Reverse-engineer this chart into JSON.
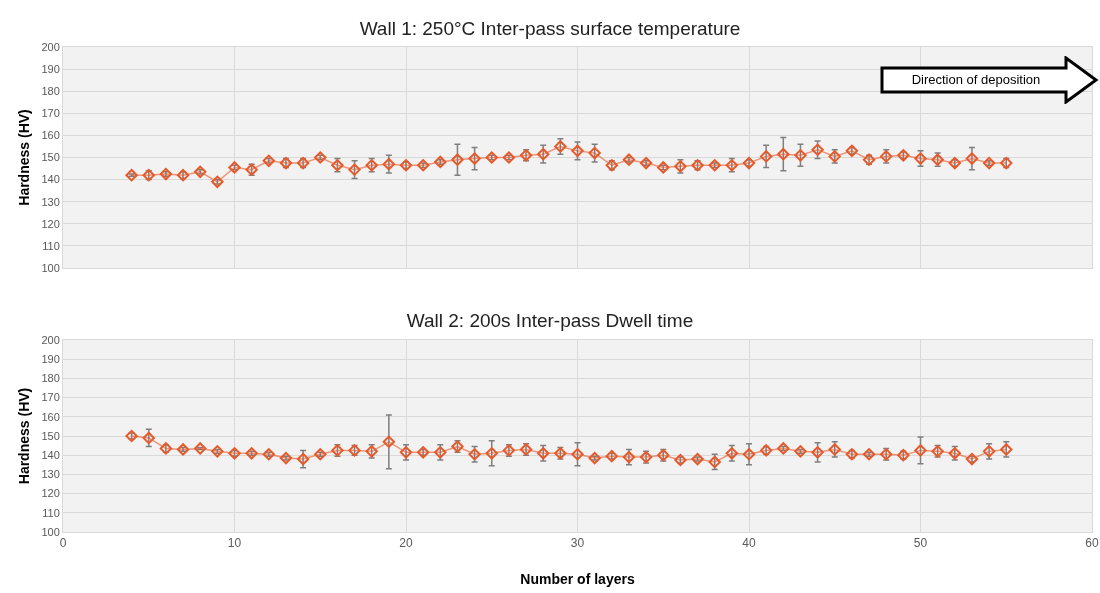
{
  "chart_data": [
    {
      "type": "line",
      "title": "Wall 1: 250°C Inter-pass surface temperature",
      "ylabel": "Hardness (HV)",
      "x": [
        4,
        5,
        6,
        7,
        8,
        9,
        10,
        11,
        12,
        13,
        14,
        15,
        16,
        17,
        18,
        19,
        20,
        21,
        22,
        23,
        24,
        25,
        26,
        27,
        28,
        29,
        30,
        31,
        32,
        33,
        34,
        35,
        36,
        37,
        38,
        39,
        40,
        41,
        42,
        43,
        44,
        45,
        46,
        47,
        48,
        49,
        50,
        51,
        52,
        53,
        54,
        55
      ],
      "series": [
        {
          "color": "#e8592a",
          "values": [
            142,
            142,
            142.5,
            142,
            143.5,
            139,
            145.5,
            144.5,
            148.5,
            147.5,
            147.5,
            150,
            146.5,
            144.5,
            146.5,
            147,
            146.5,
            146.5,
            148,
            149,
            149.5,
            150,
            150,
            151,
            151.5,
            155,
            153,
            152,
            146.5,
            149,
            147.5,
            145.5,
            146,
            146.5,
            146.5,
            146.5,
            147.5,
            150.5,
            151.5,
            151,
            153.5,
            150.5,
            153,
            149,
            150.5,
            151,
            149.5,
            149,
            147.5,
            149.5,
            147.5,
            147.5
          ],
          "errors": [
            0.5,
            2,
            1,
            1.5,
            1,
            1,
            1,
            2.5,
            1,
            2,
            2,
            1,
            3,
            4,
            3,
            4,
            1.5,
            1,
            1,
            7,
            5,
            1,
            1,
            2.5,
            4,
            3.5,
            4,
            4,
            2,
            1,
            1,
            1,
            3,
            2,
            1,
            3,
            1.5,
            5,
            7.5,
            5,
            4,
            3,
            1.5,
            2,
            3,
            1.5,
            3.5,
            3,
            1.5,
            5,
            1,
            2
          ]
        }
      ],
      "xlim": [
        0,
        60
      ],
      "xticks": [
        0,
        10,
        20,
        30,
        40,
        50,
        60
      ],
      "ylim": [
        100,
        200
      ],
      "yticks": [
        100,
        110,
        120,
        130,
        140,
        150,
        160,
        170,
        180,
        190,
        200
      ],
      "tick_labels": "y",
      "grid": true,
      "marker": "diamond",
      "line_style": "solid",
      "annotations": [
        "Direction of deposition"
      ]
    },
    {
      "type": "line",
      "title": "Wall 2: 200s Inter-pass Dwell time",
      "xlabel": "Number of layers",
      "ylabel": "Hardness (HV)",
      "x": [
        4,
        5,
        6,
        7,
        8,
        9,
        10,
        11,
        12,
        13,
        14,
        15,
        16,
        17,
        18,
        19,
        20,
        21,
        22,
        23,
        24,
        25,
        26,
        27,
        28,
        29,
        30,
        31,
        32,
        33,
        34,
        35,
        36,
        37,
        38,
        39,
        40,
        41,
        42,
        43,
        44,
        45,
        46,
        47,
        48,
        49,
        50,
        51,
        52,
        53,
        54,
        55
      ],
      "series": [
        {
          "color": "#e8592a",
          "values": [
            150,
            149,
            143.5,
            143,
            143.5,
            142,
            141,
            141,
            140.5,
            138.5,
            138,
            140.5,
            142.5,
            142.5,
            142,
            147,
            141.5,
            141.5,
            141.5,
            144.5,
            140.5,
            141,
            142.5,
            143,
            141,
            141,
            140.5,
            138.5,
            139.5,
            139,
            139,
            140,
            137.5,
            138,
            136.5,
            141,
            140.5,
            142.5,
            143.5,
            142,
            141.5,
            143,
            140.5,
            140.5,
            140.5,
            140,
            142.5,
            142,
            141,
            138,
            142,
            143
          ],
          "errors": [
            1.5,
            4.5,
            2,
            1,
            0.5,
            1,
            1.5,
            1,
            1,
            1,
            4.5,
            1,
            3,
            2.5,
            3.5,
            14,
            4,
            1.5,
            4,
            3,
            4,
            6.5,
            3,
            3,
            4,
            3,
            6,
            1,
            1.5,
            4,
            3,
            3,
            1.5,
            1,
            4,
            4,
            5.5,
            2,
            1,
            1,
            5,
            4,
            2,
            1,
            3,
            2,
            7,
            3,
            3.5,
            1.5,
            4,
            4
          ]
        }
      ],
      "xlim": [
        0,
        60
      ],
      "xticks": [
        0,
        10,
        20,
        30,
        40,
        50,
        60
      ],
      "ylim": [
        100,
        200
      ],
      "yticks": [
        100,
        110,
        120,
        130,
        140,
        150,
        160,
        170,
        180,
        190,
        200
      ],
      "grid": true,
      "marker": "diamond",
      "line_style": "solid"
    }
  ]
}
